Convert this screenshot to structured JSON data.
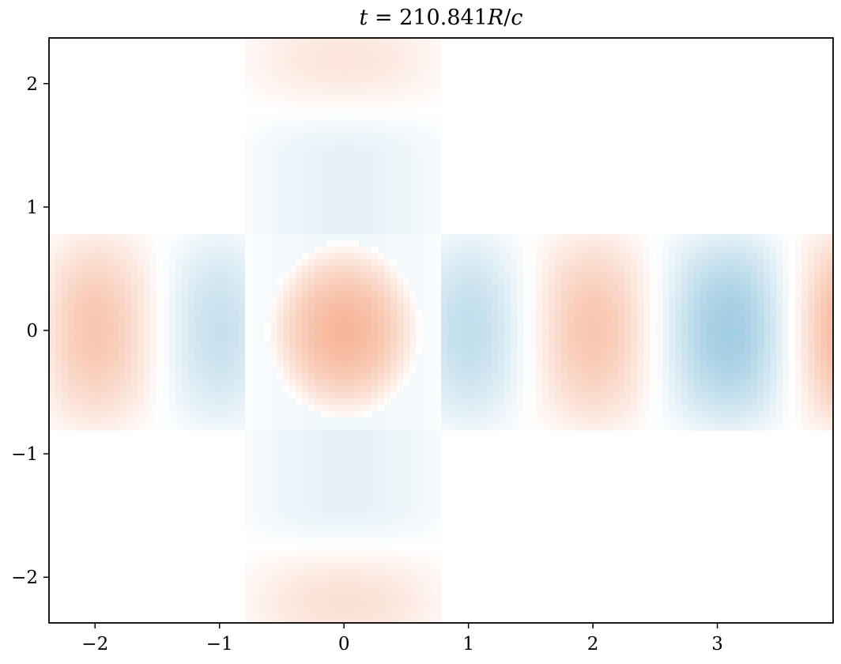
{
  "chart_data": {
    "type": "heatmap",
    "title": {
      "var": "t",
      "eq": " = ",
      "value": "210.841",
      "unit_var": "R",
      "unit_sep": "/",
      "unit_var2": "c"
    },
    "xlabel": "",
    "ylabel": "",
    "xlim": [
      -2.37,
      3.93
    ],
    "ylim": [
      -2.37,
      2.37
    ],
    "xticks": [
      -2,
      -1,
      0,
      1,
      2,
      3
    ],
    "yticks": [
      -2,
      -1,
      0,
      1,
      2
    ],
    "xtick_labels": [
      "−2",
      "−1",
      "0",
      "1",
      "2",
      "3"
    ],
    "ytick_labels": [
      "−2",
      "−1",
      "0",
      "1",
      "2"
    ],
    "grid": false,
    "colormap": "diverging blue-white-red (RdBu_r)",
    "domain": {
      "shape": "cross-shaped waveguide junction",
      "horizontal_arm": {
        "x": [
          -2.37,
          3.93
        ],
        "y": [
          -0.8,
          0.8
        ]
      },
      "vertical_arm": {
        "x": [
          -0.8,
          0.8
        ],
        "y": [
          -2.37,
          2.37
        ]
      }
    },
    "field_features": {
      "horizontal_extrema": [
        {
          "x": -2.0,
          "value": 0.22
        },
        {
          "x": -1.0,
          "value": -0.18
        },
        {
          "x": 0.0,
          "value": 0.28
        },
        {
          "x": 1.0,
          "value": -0.2
        },
        {
          "x": 2.0,
          "value": 0.22
        },
        {
          "x": 3.1,
          "value": -0.3
        }
      ],
      "vertical_extrema": [
        {
          "y": 2.2,
          "value": 0.1
        },
        {
          "y": 1.4,
          "value": -0.08
        },
        {
          "y": -1.4,
          "value": -0.08
        },
        {
          "y": -2.2,
          "value": 0.12
        }
      ]
    }
  },
  "colors": {
    "positive": "#f4a582",
    "negative": "#92c5de",
    "zero": "#ffffff",
    "axis": "#000000"
  }
}
